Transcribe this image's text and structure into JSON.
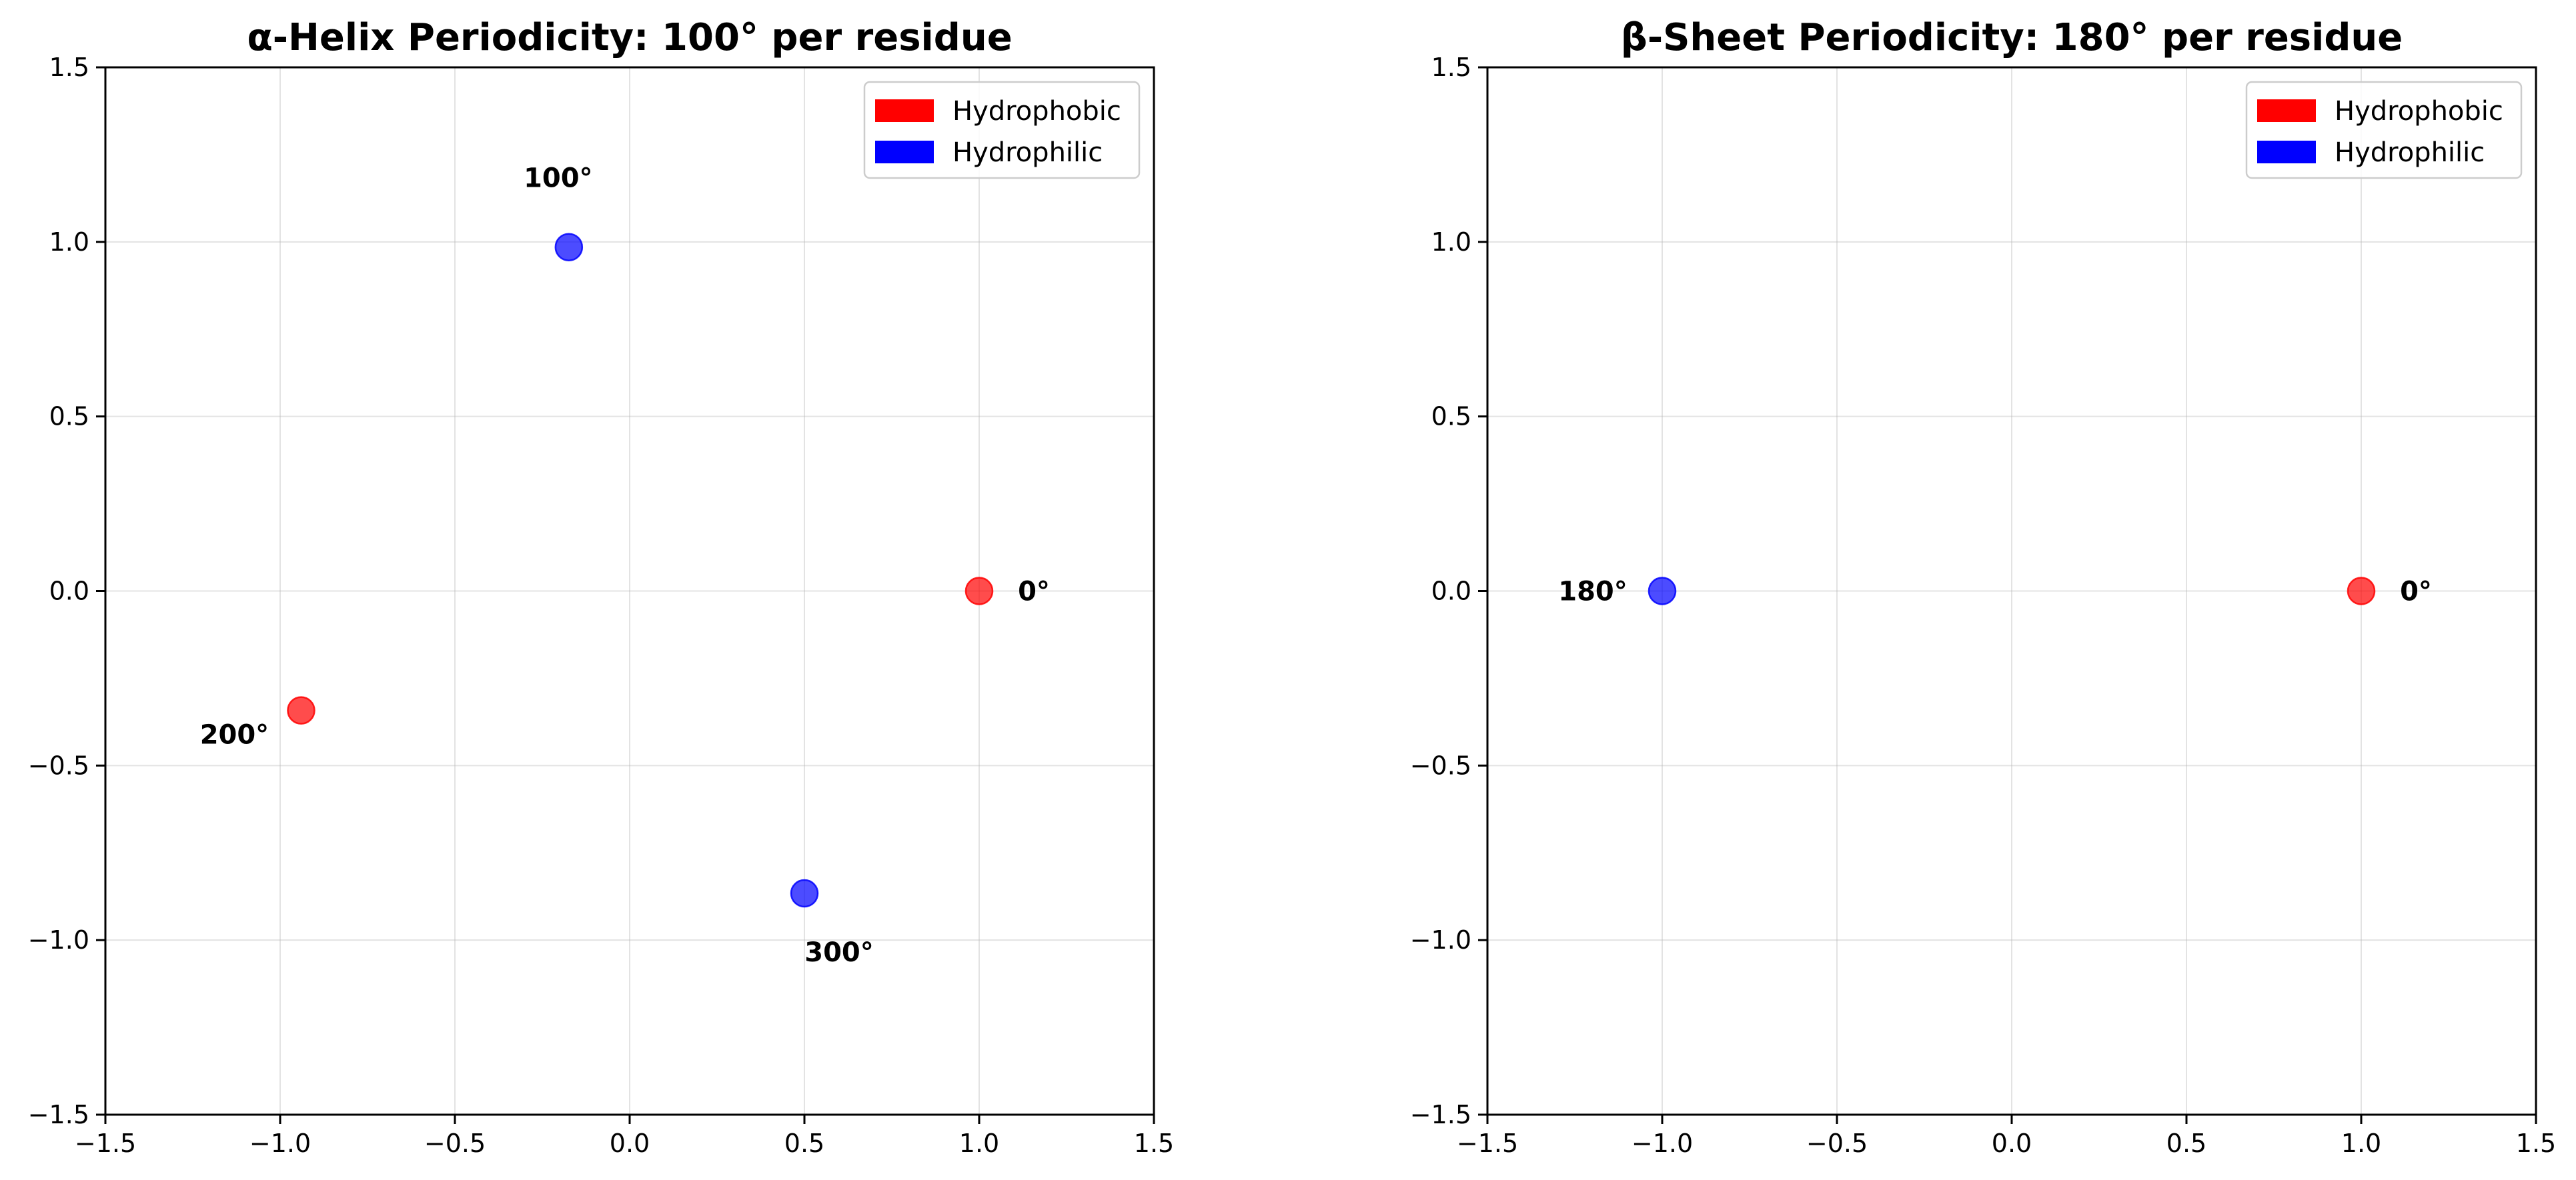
{
  "chart_data": [
    {
      "type": "scatter",
      "title": "α-Helix Periodicity: 100° per residue",
      "xlim": [
        -1.5,
        1.5
      ],
      "ylim": [
        -1.5,
        1.5
      ],
      "xticks": [
        "−1.5",
        "−1.0",
        "−0.5",
        "0.0",
        "0.5",
        "1.0",
        "1.5"
      ],
      "yticks": [
        "−1.5",
        "−1.0",
        "−0.5",
        "0.0",
        "0.5",
        "1.0",
        "1.5"
      ],
      "grid": true,
      "legend": {
        "placement": "top-right",
        "entries": [
          {
            "label": "Hydrophobic",
            "color": "#ff0000"
          },
          {
            "label": "Hydrophilic",
            "color": "#0000ff"
          }
        ]
      },
      "points": [
        {
          "x": 1.0,
          "y": 0.0,
          "label": "0°",
          "category": "Hydrophobic",
          "color": "#ff0000"
        },
        {
          "x": -0.174,
          "y": 0.985,
          "label": "100°",
          "category": "Hydrophilic",
          "color": "#0000ff"
        },
        {
          "x": -0.94,
          "y": -0.342,
          "label": "200°",
          "category": "Hydrophobic",
          "color": "#ff0000"
        },
        {
          "x": 0.5,
          "y": -0.866,
          "label": "300°",
          "category": "Hydrophilic",
          "color": "#0000ff"
        }
      ]
    },
    {
      "type": "scatter",
      "title": "β-Sheet Periodicity: 180° per residue",
      "xlim": [
        -1.5,
        1.5
      ],
      "ylim": [
        -1.5,
        1.5
      ],
      "xticks": [
        "−1.5",
        "−1.0",
        "−0.5",
        "0.0",
        "0.5",
        "1.0",
        "1.5"
      ],
      "yticks": [
        "−1.5",
        "−1.0",
        "−0.5",
        "0.0",
        "0.5",
        "1.0",
        "1.5"
      ],
      "grid": true,
      "legend": {
        "placement": "top-right",
        "entries": [
          {
            "label": "Hydrophobic",
            "color": "#ff0000"
          },
          {
            "label": "Hydrophilic",
            "color": "#0000ff"
          }
        ]
      },
      "points": [
        {
          "x": 1.0,
          "y": 0.0,
          "label": "0°",
          "category": "Hydrophobic",
          "color": "#ff0000"
        },
        {
          "x": -1.0,
          "y": 0.0,
          "label": "180°",
          "category": "Hydrophilic",
          "color": "#0000ff"
        }
      ]
    }
  ]
}
